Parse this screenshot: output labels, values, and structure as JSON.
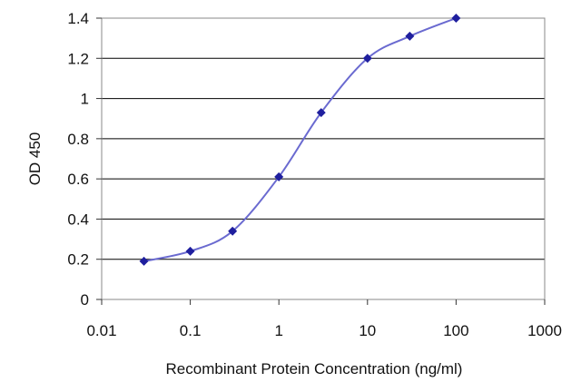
{
  "chart_data": {
    "type": "scatter",
    "xlabel": "Recombinant Protein Concentration (ng/ml)",
    "ylabel": "OD 450",
    "x_scale": "log",
    "xlim": [
      0.01,
      1000
    ],
    "ylim": [
      0,
      1.4
    ],
    "x_ticks": [
      0.01,
      0.1,
      1,
      10,
      100,
      1000
    ],
    "x_tick_labels": [
      "0.01",
      "0.1",
      "1",
      "10",
      "100",
      "1000"
    ],
    "y_ticks": [
      0,
      0.2,
      0.4,
      0.6,
      0.8,
      1,
      1.2,
      1.4
    ],
    "y_tick_labels": [
      "0",
      "0.2",
      "0.4",
      "0.6",
      "0.8",
      "1",
      "1.2",
      "1.4"
    ],
    "grid": "horizontal",
    "series": [
      {
        "points": [
          {
            "x": 0.03,
            "y": 0.19
          },
          {
            "x": 0.1,
            "y": 0.24
          },
          {
            "x": 0.3,
            "y": 0.34
          },
          {
            "x": 1,
            "y": 0.61
          },
          {
            "x": 3,
            "y": 0.93
          },
          {
            "x": 10,
            "y": 1.2
          },
          {
            "x": 30,
            "y": 1.31
          },
          {
            "x": 100,
            "y": 1.4
          }
        ],
        "fit_curve": true
      }
    ],
    "colors": {
      "marker": "#1f1f9e",
      "line": "#6a6ad0",
      "grid": "#000000",
      "frame": "#888888"
    }
  }
}
